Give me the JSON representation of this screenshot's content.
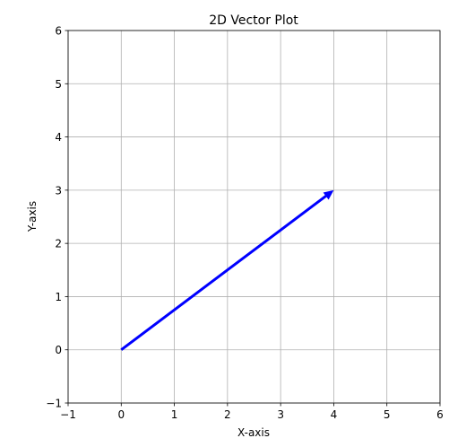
{
  "chart_data": {
    "type": "vector",
    "title": "2D Vector Plot",
    "x_label": "X-axis",
    "y_label": "Y-axis",
    "x": [
      0
    ],
    "y": [
      0
    ],
    "u": [
      4
    ],
    "v": [
      3
    ],
    "color": "#0000ff",
    "xlim": [
      -1,
      6
    ],
    "ylim": [
      -1,
      6
    ],
    "xticks": [
      {
        "value": -1,
        "label": "−1"
      },
      0,
      1,
      2,
      3,
      4,
      5,
      6
    ],
    "yticks": [
      {
        "value": -1,
        "label": "−1"
      },
      0,
      1,
      2,
      3,
      4,
      5,
      6
    ],
    "grid": true
  }
}
